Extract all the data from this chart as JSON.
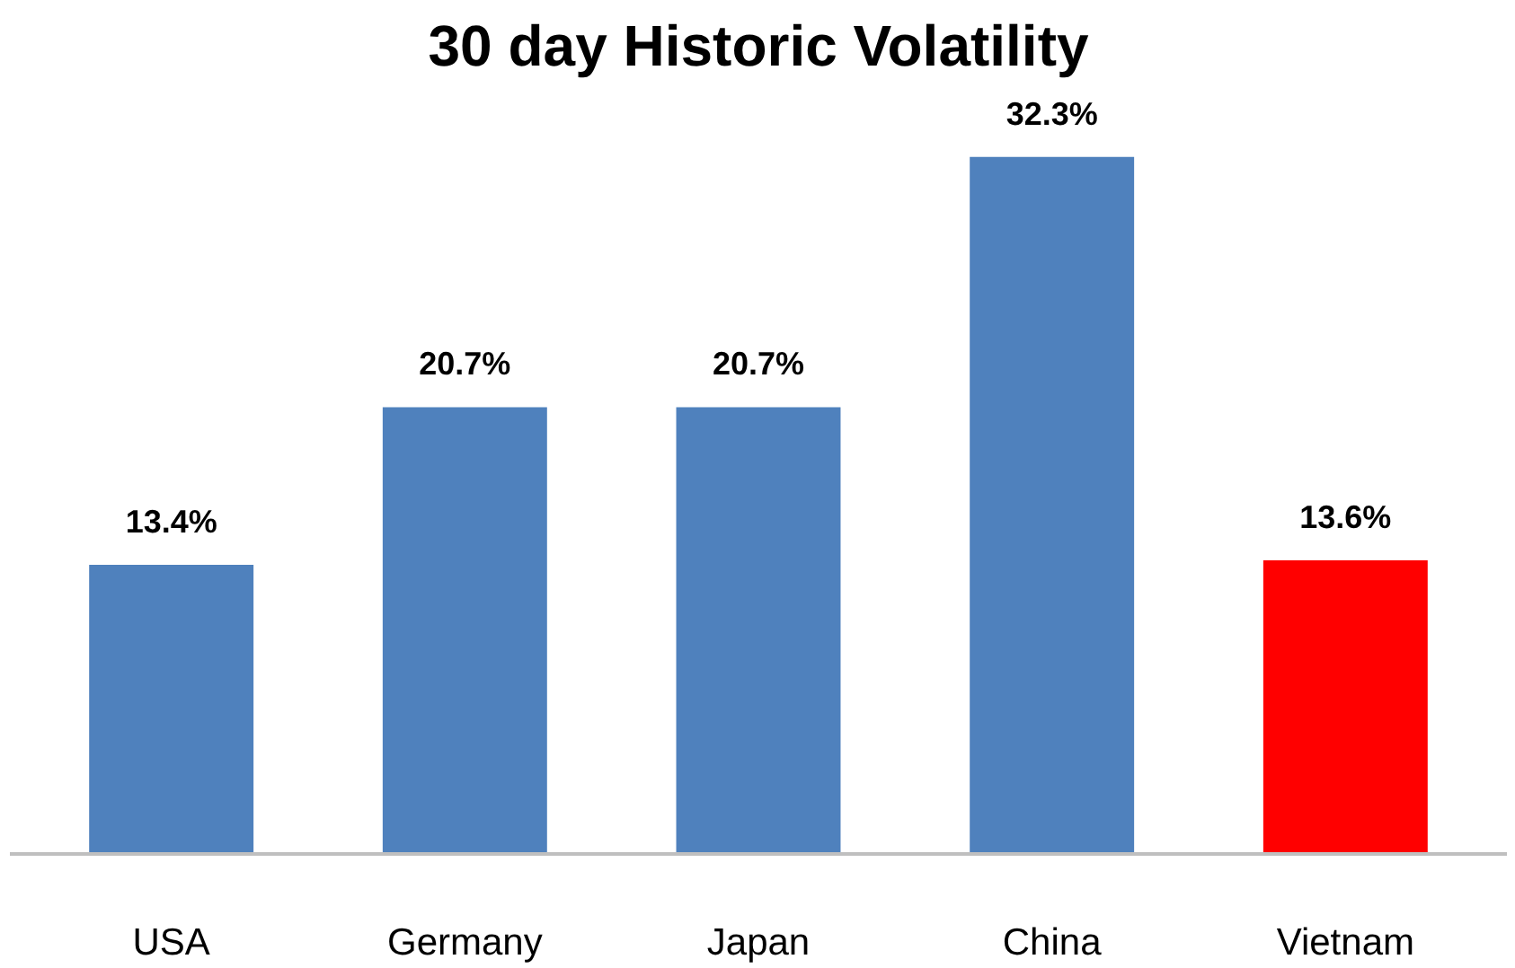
{
  "chart_data": {
    "type": "bar",
    "title": "30 day Historic Volatility",
    "categories": [
      "USA",
      "Germany",
      "Japan",
      "China",
      "Vietnam"
    ],
    "values": [
      13.4,
      20.7,
      20.7,
      32.3,
      13.6
    ],
    "colors": [
      "#4f81bd",
      "#4f81bd",
      "#4f81bd",
      "#4f81bd",
      "#ff0000"
    ],
    "value_labels": [
      "13.4%",
      "20.7%",
      "20.7%",
      "32.3%",
      "13.6%"
    ],
    "tick_labels": "x",
    "grid": false
  }
}
